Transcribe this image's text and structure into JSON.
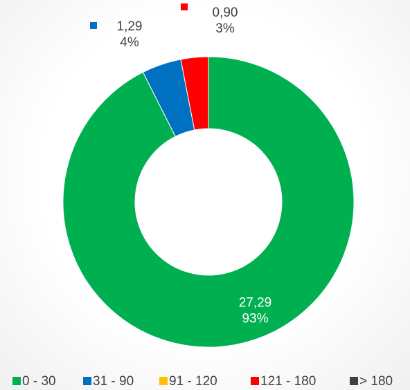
{
  "chart_data": {
    "type": "donut",
    "categories": [
      "0 - 30",
      "31 - 90",
      "91 - 120",
      "121 - 180",
      "> 180"
    ],
    "values": [
      27.29,
      1.29,
      0,
      0.9,
      0
    ],
    "value_labels": [
      "27,29",
      "1,29",
      null,
      "0,90",
      null
    ],
    "percent_labels": [
      "93%",
      "4%",
      null,
      "3%",
      null
    ],
    "colors": [
      "#00b050",
      "#0070c0",
      "#ffc000",
      "#ff0000",
      "#404040"
    ],
    "legend": "bottom"
  }
}
